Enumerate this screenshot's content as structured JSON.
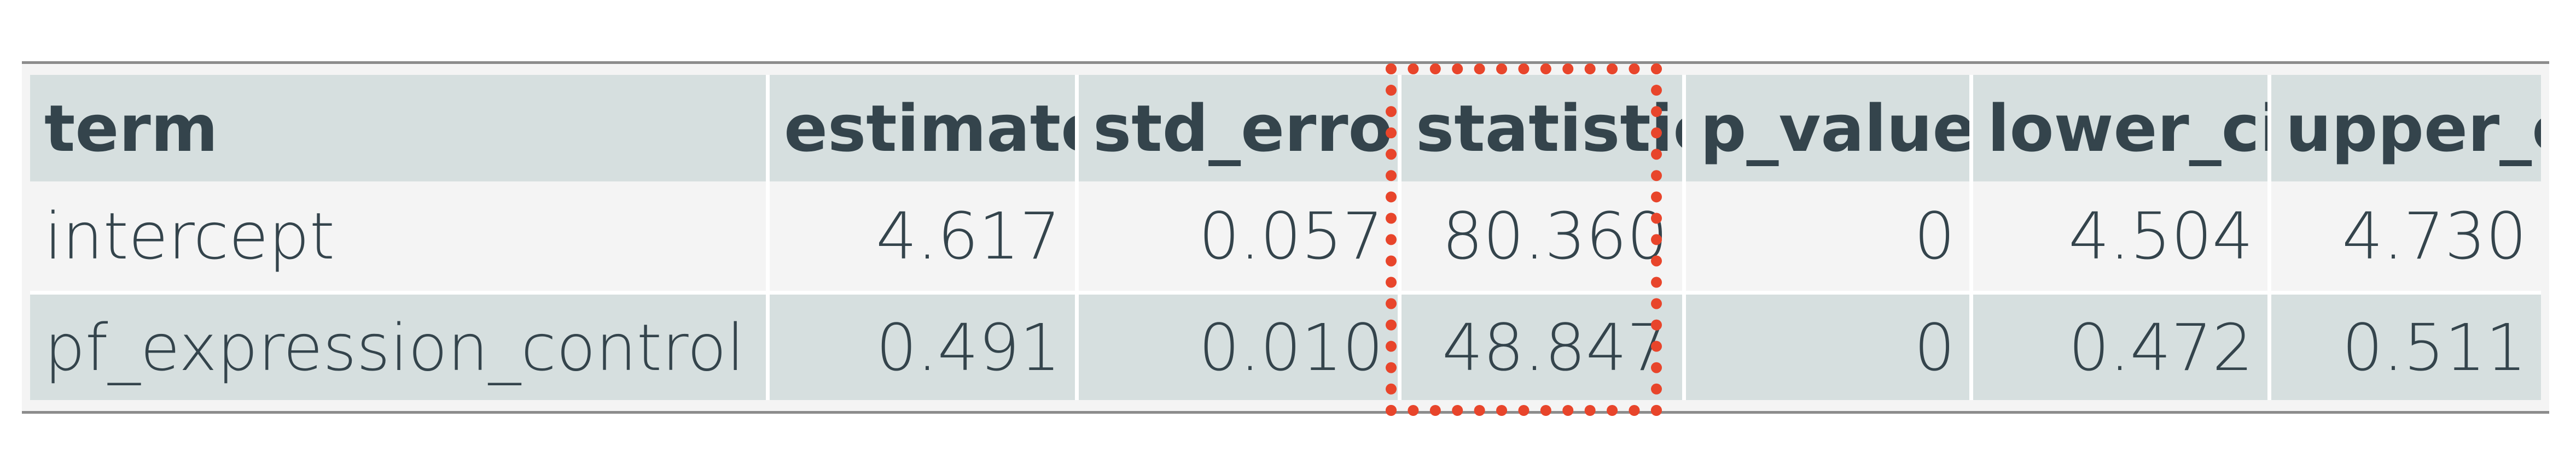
{
  "table": {
    "headers": [
      "term",
      "estimate",
      "std_error",
      "statistic",
      "p_value",
      "lower_ci",
      "upper_ci"
    ],
    "rows": [
      [
        "intercept",
        "4.617",
        "0.057",
        "80.360",
        "0",
        "4.504",
        "4.730"
      ],
      [
        "pf_expression_control",
        "0.491",
        "0.010",
        "48.847",
        "0",
        "0.472",
        "0.511"
      ]
    ]
  },
  "colors": {
    "header_bg": "#d6dfdf",
    "row_alt_bg": "#f4f4f4",
    "text": "#34444c",
    "highlight": "#e8452b",
    "rule": "#8c8c8c"
  }
}
